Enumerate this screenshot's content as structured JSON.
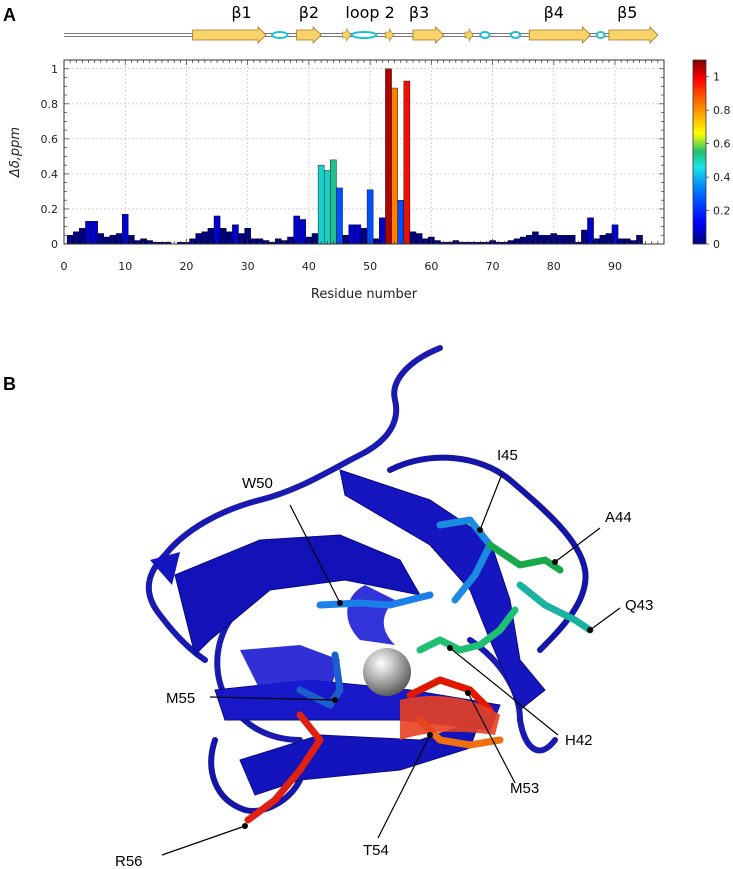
{
  "panels": {
    "a_label": "A",
    "b_label": "B"
  },
  "colormap": [
    "#00007f",
    "#0000ff",
    "#007fff",
    "#19e6e6",
    "#20c070",
    "#66cc33",
    "#ffff00",
    "#ff9900",
    "#ff2200",
    "#800000"
  ],
  "secondary_structure": {
    "labels": [
      {
        "text": "β1",
        "residue": 29
      },
      {
        "text": "β2",
        "residue": 40
      },
      {
        "text": "loop 2",
        "residue": 50
      },
      {
        "text": "β3",
        "residue": 58
      },
      {
        "text": "β4",
        "residue": 80
      },
      {
        "text": "β5",
        "residue": 92
      }
    ],
    "strands": [
      [
        21,
        33
      ],
      [
        38,
        42
      ],
      [
        57,
        62
      ],
      [
        76,
        86
      ],
      [
        89,
        97
      ]
    ],
    "helices": [
      [
        34,
        36.5
      ],
      [
        47,
        51
      ],
      [
        68,
        69.5
      ],
      [
        73,
        74.5
      ],
      [
        87,
        88.3
      ]
    ],
    "small_arrows": [
      46,
      53,
      66
    ]
  },
  "chart_data": {
    "type": "bar",
    "xlabel": "Residue number",
    "ylabel": "Δδ,ppm",
    "xlim": [
      0,
      98
    ],
    "ylim": [
      0,
      1.05
    ],
    "xticks": [
      0,
      10,
      20,
      30,
      40,
      50,
      60,
      70,
      80,
      90
    ],
    "yticks": [
      0,
      0.2,
      0.4,
      0.6,
      0.8,
      1
    ],
    "grid": true,
    "colorbar": {
      "range": [
        0,
        1.1
      ],
      "ticks": [
        0,
        0.2,
        0.4,
        0.6,
        0.8,
        1
      ]
    },
    "x": [
      1,
      2,
      3,
      4,
      5,
      6,
      7,
      8,
      9,
      10,
      11,
      12,
      13,
      14,
      15,
      16,
      17,
      18,
      19,
      20,
      21,
      22,
      23,
      24,
      25,
      26,
      27,
      28,
      29,
      30,
      31,
      32,
      33,
      34,
      35,
      36,
      37,
      38,
      39,
      40,
      41,
      42,
      43,
      44,
      45,
      46,
      47,
      48,
      49,
      50,
      51,
      52,
      53,
      54,
      55,
      56,
      57,
      58,
      59,
      60,
      61,
      62,
      63,
      64,
      65,
      66,
      67,
      68,
      69,
      70,
      71,
      72,
      73,
      74,
      75,
      76,
      77,
      78,
      79,
      80,
      81,
      82,
      83,
      84,
      85,
      86,
      87,
      88,
      89,
      90,
      91,
      92,
      93,
      94
    ],
    "values": [
      0.05,
      0.07,
      0.09,
      0.13,
      0.13,
      0.06,
      0.04,
      0.05,
      0.06,
      0.17,
      0.05,
      0.02,
      0.03,
      0.02,
      0.01,
      0.01,
      0.01,
      0.0,
      0.01,
      0.01,
      0.03,
      0.06,
      0.07,
      0.09,
      0.16,
      0.09,
      0.07,
      0.11,
      0.06,
      0.09,
      0.03,
      0.03,
      0.02,
      0.01,
      0.03,
      0.02,
      0.04,
      0.16,
      0.14,
      0.04,
      0.06,
      0.45,
      0.42,
      0.48,
      0.32,
      0.05,
      0.11,
      0.11,
      0.09,
      0.31,
      0.03,
      0.15,
      1.0,
      0.89,
      0.25,
      0.93,
      0.07,
      0.06,
      0.03,
      0.04,
      0.02,
      0.01,
      0.01,
      0.02,
      0.01,
      0.01,
      0.01,
      0.01,
      0.01,
      0.02,
      0.01,
      0.01,
      0.02,
      0.03,
      0.04,
      0.05,
      0.07,
      0.05,
      0.05,
      0.06,
      0.05,
      0.05,
      0.05,
      0.01,
      0.08,
      0.15,
      0.03,
      0.05,
      0.06,
      0.11,
      0.03,
      0.03,
      0.02,
      0.05
    ]
  },
  "structure": {
    "residue_labels": [
      {
        "text": "I45",
        "color": "#1a8be0"
      },
      {
        "text": "A44",
        "color": "#17a84a"
      },
      {
        "text": "W50",
        "color": "#1a7fe8"
      },
      {
        "text": "Q43",
        "color": "#19b3a0"
      },
      {
        "text": "H42",
        "color": "#1cc070"
      },
      {
        "text": "M55",
        "color": "#1a5fd0"
      },
      {
        "text": "M53",
        "color": "#e01800"
      },
      {
        "text": "T54",
        "color": "#f07010"
      },
      {
        "text": "R56",
        "color": "#e02010"
      }
    ]
  }
}
